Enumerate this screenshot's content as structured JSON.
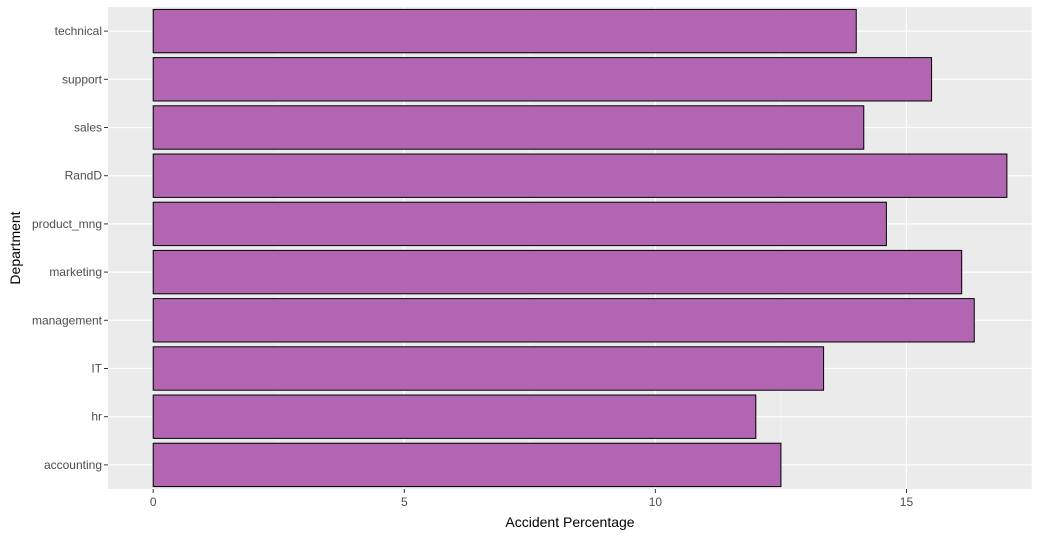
{
  "chart_data": {
    "type": "bar",
    "orientation": "horizontal",
    "categories": [
      "accounting",
      "hr",
      "IT",
      "management",
      "marketing",
      "product_mng",
      "RandD",
      "sales",
      "support",
      "technical"
    ],
    "values": [
      12.5,
      12.0,
      13.35,
      16.35,
      16.1,
      14.6,
      17.0,
      14.15,
      15.5,
      14.0
    ],
    "xlabel": "Accident Percentage",
    "ylabel": "Department",
    "xlim": [
      -0.9,
      17.5
    ],
    "xticks": [
      0,
      5,
      10,
      15
    ],
    "xtick_labels": [
      "0",
      "5",
      "10",
      "15"
    ],
    "grid": true,
    "legend": "none",
    "colors": {
      "bar_fill": "#b266b2",
      "bar_stroke": "#000000",
      "panel_background": "#ebebeb",
      "grid_major": "#ffffff",
      "tick_text": "#4d4d4d",
      "axis_title": "#000000"
    }
  }
}
